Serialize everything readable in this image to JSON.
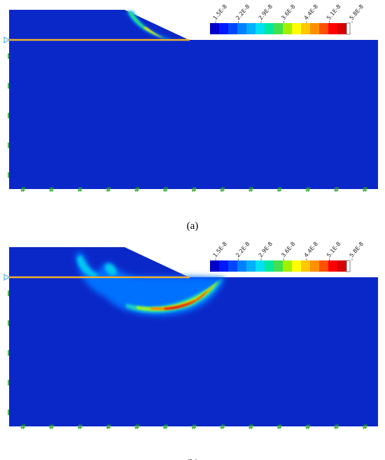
{
  "panels": [
    {
      "caption": "(a)",
      "colorbar": {
        "labels": [
          "1.5E-8",
          "2.2E-8",
          "2.9E-8",
          "3.6E-8",
          "4.4E-8",
          "5.1E-8",
          "5.8E-8"
        ]
      }
    },
    {
      "caption": "(b)",
      "colorbar": {
        "labels": [
          "1.5E-8",
          "2.2E-8",
          "2.9E-8",
          "3.6E-8",
          "4.4E-8",
          "5.1E-8",
          "5.8E-8"
        ]
      }
    }
  ]
}
